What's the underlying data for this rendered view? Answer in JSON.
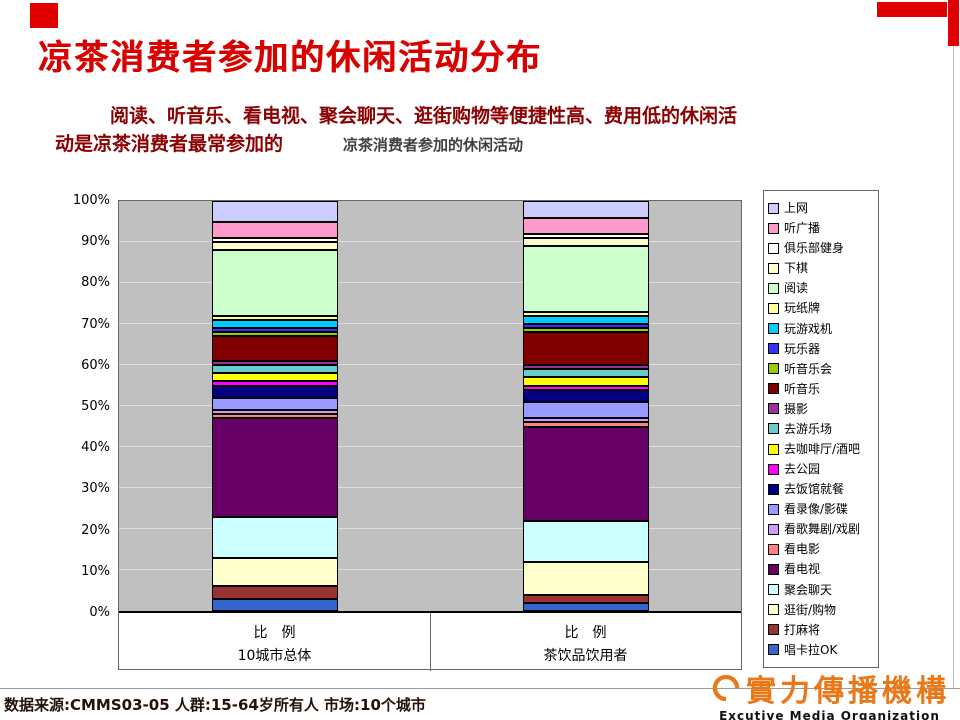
{
  "slide": {
    "title": "凉茶消费者参加的休闲活动分布",
    "subtitle_line1": "阅读、听音乐、看电视、聚会聊天、逛街购物等便捷性高、费用低的休闲活",
    "subtitle_line2": "动是凉茶消费者最常参加的",
    "footer": "数据来源:CMMS03-05 人群:15-64岁所有人 市场:10个城市",
    "logo": {
      "cn": "實力傳播機構",
      "en": "Excutive Media Organization"
    },
    "colors": {
      "title_red": "#D90000",
      "subtitle_maroon": "#8B0000",
      "logo_orange": "#E87818"
    }
  },
  "chart_data": {
    "type": "bar",
    "stacked": true,
    "percent": true,
    "title": "凉茶消费者参加的休闲活动",
    "categories": [
      "10城市总体",
      "茶饮品饮用者"
    ],
    "category_axis_label": "比　例",
    "y_ticks": [
      "0%",
      "10%",
      "20%",
      "30%",
      "40%",
      "50%",
      "60%",
      "70%",
      "80%",
      "90%",
      "100%"
    ],
    "ylim": [
      0,
      100
    ],
    "grid": true,
    "plot_bg": "#C0C0C0",
    "legend_position": "right",
    "series": [
      {
        "name": "唱卡拉OK",
        "color": "#3366CC",
        "values": [
          3,
          2
        ]
      },
      {
        "name": "打麻将",
        "color": "#993333",
        "values": [
          3,
          2
        ]
      },
      {
        "name": "逛街/购物",
        "color": "#FFFFCC",
        "values": [
          7,
          8
        ]
      },
      {
        "name": "聚会聊天",
        "color": "#CCFFFF",
        "values": [
          10,
          10
        ]
      },
      {
        "name": "看电视",
        "color": "#660066",
        "values": [
          24,
          23
        ]
      },
      {
        "name": "看电影",
        "color": "#FF8080",
        "values": [
          1,
          1
        ]
      },
      {
        "name": "看歌舞剧/戏剧",
        "color": "#CC99FF",
        "values": [
          1,
          1
        ]
      },
      {
        "name": "看录像/影碟",
        "color": "#9999FF",
        "values": [
          3,
          4
        ]
      },
      {
        "name": "去饭馆就餐",
        "color": "#000080",
        "values": [
          3,
          3
        ]
      },
      {
        "name": "去公园",
        "color": "#FF00FF",
        "values": [
          1,
          1
        ]
      },
      {
        "name": "去咖啡厅/酒吧",
        "color": "#FFFF00",
        "values": [
          2,
          2
        ]
      },
      {
        "name": "去游乐场",
        "color": "#66CCCC",
        "values": [
          2,
          2
        ]
      },
      {
        "name": "摄影",
        "color": "#993399",
        "values": [
          1,
          1
        ]
      },
      {
        "name": "听音乐",
        "color": "#800000",
        "values": [
          6,
          8
        ]
      },
      {
        "name": "听音乐会",
        "color": "#99CC00",
        "values": [
          1,
          1
        ]
      },
      {
        "name": "玩乐器",
        "color": "#3333FF",
        "values": [
          1,
          1
        ]
      },
      {
        "name": "玩游戏机",
        "color": "#00CCFF",
        "values": [
          2,
          2
        ]
      },
      {
        "name": "玩纸牌",
        "color": "#FFFF99",
        "values": [
          1,
          1
        ]
      },
      {
        "name": "阅读",
        "color": "#CCFFCC",
        "values": [
          16,
          16
        ]
      },
      {
        "name": "下棋",
        "color": "#FFFFCC",
        "values": [
          2,
          2
        ]
      },
      {
        "name": "俱乐部健身",
        "color": "#FFFFFF",
        "values": [
          1,
          1
        ]
      },
      {
        "name": "听广播",
        "color": "#FF99CC",
        "values": [
          4,
          4
        ]
      },
      {
        "name": "上网",
        "color": "#CCCCFF",
        "values": [
          5,
          4
        ]
      }
    ],
    "legend_order_top_to_bottom": [
      "上网",
      "听广播",
      "俱乐部健身",
      "下棋",
      "阅读",
      "玩纸牌",
      "玩游戏机",
      "玩乐器",
      "听音乐会",
      "听音乐",
      "摄影",
      "去游乐场",
      "去咖啡厅/酒吧",
      "去公园",
      "去饭馆就餐",
      "看录像/影碟",
      "看歌舞剧/戏剧",
      "看电影",
      "看电视",
      "聚会聊天",
      "逛街/购物",
      "打麻将",
      "唱卡拉OK"
    ]
  }
}
